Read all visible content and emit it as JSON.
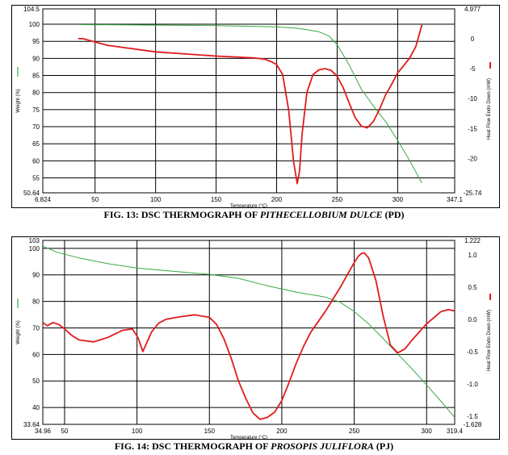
{
  "figures": [
    {
      "caption_prefix": "FIG. 13: DSC THERMOGRAPH  OF ",
      "caption_species": "PITHECELLOBIUM DULCE",
      "caption_suffix": " (PD)"
    },
    {
      "caption_prefix": "FIG. 14: DSC THERMOGRAPH  OF ",
      "caption_species": "PROSOPIS JULIFLORA",
      "caption_suffix": " (PJ)"
    }
  ],
  "chart_data": [
    {
      "type": "line",
      "xlabel": "Temperature (°C)",
      "ylabel_left": "Weight (%)",
      "ylabel_right": "Heat Flow Endo Down (mW)",
      "xlim": [
        6.824,
        347.1
      ],
      "ylim_left": [
        50.64,
        104.5
      ],
      "ylim_right": [
        -25.74,
        4.977
      ],
      "x_ticks": [
        "6.824",
        "50",
        "100",
        "150",
        "200",
        "250",
        "300",
        "347.1"
      ],
      "x_tick_values": [
        6.824,
        50,
        100,
        150,
        200,
        250,
        300,
        347.1
      ],
      "y_left_ticks": [
        "104.5",
        "100",
        "95",
        "90",
        "85",
        "80",
        "75",
        "70",
        "65",
        "60",
        "55",
        "50.64"
      ],
      "y_left_values": [
        104.5,
        100,
        95,
        90,
        85,
        80,
        75,
        70,
        65,
        60,
        55,
        50.64
      ],
      "y_right_ticks": [
        "4.977",
        "0",
        "-5",
        "-10",
        "-15",
        "-20",
        "-25.74"
      ],
      "y_right_values": [
        4.977,
        0,
        -5,
        -10,
        -15,
        -20,
        -25.74
      ],
      "grid": true,
      "series": [
        {
          "name": "Weight",
          "axis": "left",
          "color": "#39a845",
          "x": [
            36,
            80,
            150,
            180,
            200,
            215,
            225,
            235,
            243,
            250,
            260,
            270,
            280,
            290,
            300,
            310,
            320
          ],
          "y": [
            99.9,
            99.8,
            99.6,
            99.4,
            99.2,
            98.9,
            98.4,
            97.8,
            96.6,
            94.0,
            88.0,
            81.0,
            76.0,
            71.5,
            66.0,
            60.0,
            53.5
          ]
        },
        {
          "name": "Heat Flow",
          "axis": "right",
          "color": "#e01b1b",
          "x": [
            36,
            40,
            60,
            100,
            150,
            180,
            190,
            195,
            200,
            205,
            210,
            214,
            217,
            219,
            221,
            225,
            230,
            235,
            240,
            245,
            250,
            255,
            260,
            265,
            270,
            275,
            280,
            285,
            290,
            295,
            300,
            305,
            310,
            315,
            320
          ],
          "y": [
            0.0,
            0.0,
            -1.1,
            -2.2,
            -2.9,
            -3.2,
            -3.4,
            -3.8,
            -4.3,
            -6.0,
            -12.0,
            -20.5,
            -24.2,
            -22.0,
            -16.0,
            -9.0,
            -6.0,
            -5.2,
            -5.0,
            -5.3,
            -6.3,
            -8.2,
            -10.8,
            -13.2,
            -14.6,
            -14.9,
            -13.8,
            -11.8,
            -9.4,
            -7.6,
            -5.7,
            -4.5,
            -3.2,
            -1.3,
            2.3
          ]
        }
      ]
    },
    {
      "type": "line",
      "xlabel": "Temperature (°C)",
      "ylabel_left": "Weight (%)",
      "ylabel_right": "Heat Flow Endo Down (mW)",
      "xlim": [
        34.96,
        319.4
      ],
      "ylim_left": [
        33.64,
        103
      ],
      "ylim_right": [
        -1.628,
        1.222
      ],
      "x_ticks": [
        "34.96",
        "50",
        "100",
        "150",
        "200",
        "250",
        "300",
        "319.4"
      ],
      "x_tick_values": [
        34.96,
        50,
        100,
        150,
        200,
        250,
        300,
        319.4
      ],
      "y_left_ticks": [
        "103",
        "100",
        "90",
        "80",
        "70",
        "60",
        "50",
        "40",
        "33.64"
      ],
      "y_left_values": [
        103,
        100,
        90,
        80,
        70,
        60,
        50,
        40,
        33.64
      ],
      "y_right_ticks": [
        "1.222",
        "1.0",
        "0.5",
        "0.0",
        "-0.5",
        "-1.0",
        "-1.5",
        "-1.628"
      ],
      "y_right_values": [
        1.222,
        1.0,
        0.5,
        0.0,
        -0.5,
        -1.0,
        -1.5,
        -1.628
      ],
      "grid": true,
      "series": [
        {
          "name": "Weight",
          "axis": "left",
          "color": "#39a845",
          "x": [
            35,
            45,
            60,
            80,
            100,
            120,
            150,
            170,
            190,
            210,
            230,
            240,
            250,
            260,
            270,
            280,
            290,
            300,
            310,
            319
          ],
          "y": [
            100.8,
            98.5,
            96.4,
            94.2,
            92.6,
            91.6,
            90.2,
            88.7,
            85.9,
            83.5,
            81.6,
            79.8,
            76.2,
            71.5,
            66.0,
            60.2,
            54.5,
            48.5,
            42.3,
            36.5
          ]
        },
        {
          "name": "Heat Flow",
          "axis": "right",
          "color": "#e01b1b",
          "x": [
            35,
            38,
            42,
            46,
            50,
            55,
            60,
            70,
            80,
            90,
            97,
            101,
            104,
            107,
            110,
            115,
            120,
            130,
            140,
            150,
            155,
            160,
            165,
            170,
            175,
            180,
            185,
            190,
            195,
            200,
            205,
            210,
            215,
            220,
            230,
            240,
            245,
            250,
            253,
            255,
            257,
            260,
            265,
            270,
            275,
            280,
            285,
            290,
            300,
            310,
            315,
            319
          ],
          "y": [
            -0.05,
            -0.1,
            -0.05,
            -0.08,
            -0.15,
            -0.25,
            -0.32,
            -0.35,
            -0.28,
            -0.17,
            -0.15,
            -0.3,
            -0.5,
            -0.35,
            -0.2,
            -0.06,
            0.0,
            0.04,
            0.07,
            0.03,
            -0.08,
            -0.3,
            -0.6,
            -0.95,
            -1.22,
            -1.45,
            -1.55,
            -1.52,
            -1.44,
            -1.26,
            -0.98,
            -0.68,
            -0.42,
            -0.2,
            0.12,
            0.48,
            0.68,
            0.88,
            0.98,
            1.02,
            1.03,
            0.95,
            0.6,
            0.05,
            -0.4,
            -0.52,
            -0.46,
            -0.32,
            -0.07,
            0.12,
            0.15,
            0.13
          ]
        }
      ]
    }
  ]
}
